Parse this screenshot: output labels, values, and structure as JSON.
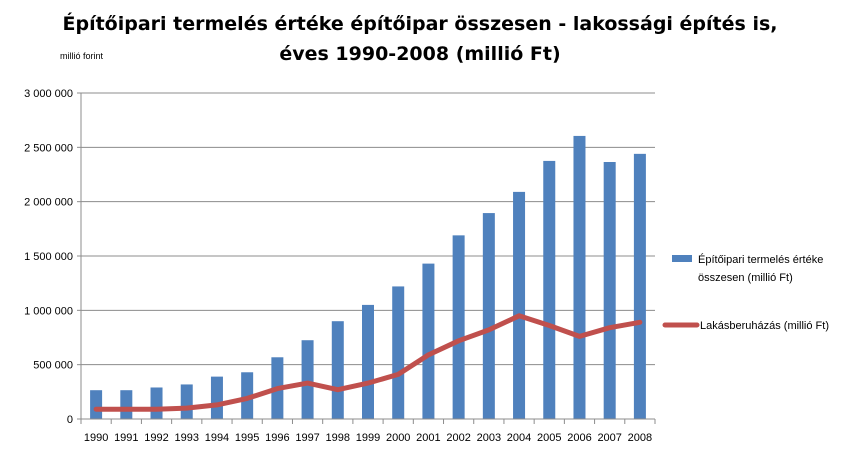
{
  "chart_data": {
    "type": "bar",
    "title_lines": [
      "Építőipari termelés értéke építőipar összesen - lakossági építés is,",
      "éves 1990-2008 (millió Ft)"
    ],
    "ylabel": "millió forint",
    "xlabel": "",
    "categories": [
      "1990",
      "1991",
      "1992",
      "1993",
      "1994",
      "1995",
      "1996",
      "1997",
      "1998",
      "1999",
      "2000",
      "2001",
      "2002",
      "2003",
      "2004",
      "2005",
      "2006",
      "2007",
      "2008"
    ],
    "ylim": [
      0,
      3000000
    ],
    "yticks": [
      0,
      500000,
      1000000,
      1500000,
      2000000,
      2500000,
      3000000
    ],
    "ytick_labels": [
      "0",
      "500 000",
      "1 000 000",
      "1 500 000",
      "2 000 000",
      "2 500 000",
      "3 000 000"
    ],
    "grid": true,
    "legend_position": "right",
    "series": [
      {
        "name_lines": [
          "Építőipari termelés értéke",
          "összesen (millió Ft)"
        ],
        "kind": "bar",
        "color": "#4F81BD",
        "values": [
          265000,
          265000,
          290000,
          318000,
          390000,
          430000,
          568000,
          725000,
          900000,
          1050000,
          1220000,
          1430000,
          1690000,
          1895000,
          2090000,
          2375000,
          2605000,
          2365000,
          2440000
        ]
      },
      {
        "name_lines": [
          "Lakásberuházás (millió Ft)"
        ],
        "kind": "line",
        "color": "#C0504D",
        "values": [
          90000,
          90000,
          90000,
          100000,
          130000,
          190000,
          280000,
          330000,
          270000,
          330000,
          410000,
          590000,
          720000,
          820000,
          950000,
          860000,
          760000,
          840000,
          890000
        ]
      }
    ]
  }
}
